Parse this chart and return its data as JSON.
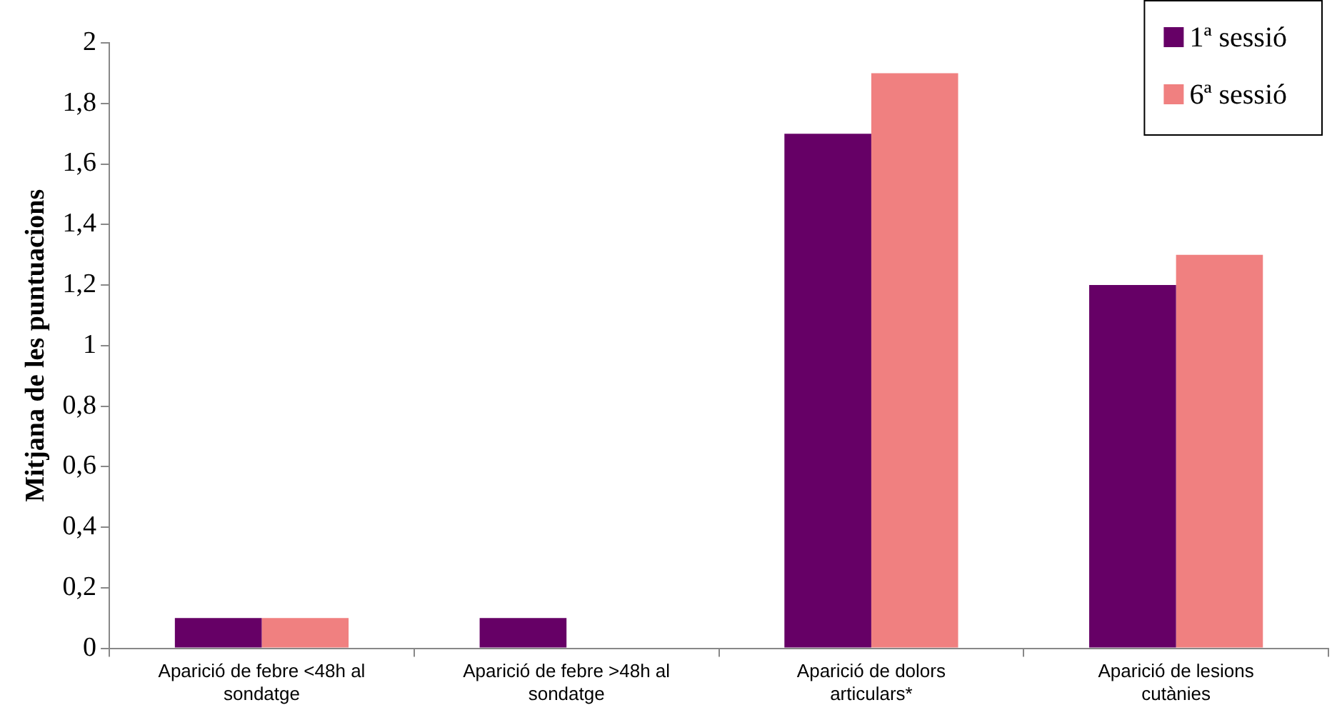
{
  "chart_data": {
    "type": "bar",
    "ylabel": "Mitjana de les puntuacions",
    "categories": [
      "Aparició de febre <48h al sondatge",
      "Aparició de febre >48h al sondatge",
      "Aparició de dolors articulars*",
      "Aparició de lesions cutànies"
    ],
    "series": [
      {
        "name": "1ª sessió",
        "color": "#660066",
        "values": [
          0.1,
          0.1,
          1.7,
          1.2
        ]
      },
      {
        "name": "6ª sessió",
        "color": "#f08080",
        "values": [
          0.1,
          0,
          1.9,
          1.3
        ]
      }
    ],
    "ylim": [
      0,
      2
    ],
    "yticks": [
      0,
      {
        "value": 0.2,
        "label": "0,2"
      },
      {
        "value": 0.4,
        "label": "0,4"
      },
      {
        "value": 0.6,
        "label": "0,6"
      },
      {
        "value": 0.8,
        "label": "0,8"
      },
      1,
      {
        "value": 1.2,
        "label": "1,2"
      },
      {
        "value": 1.4,
        "label": "1,4"
      },
      {
        "value": 1.6,
        "label": "1,6"
      },
      {
        "value": 1.8,
        "label": "1,8"
      },
      2
    ],
    "grid": false,
    "legend": "top right"
  }
}
